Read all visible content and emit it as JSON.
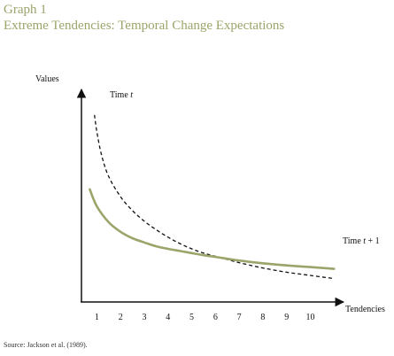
{
  "header": {
    "graph_label": "Graph 1",
    "title": "Extreme Tendencies: Temporal Change Expectations"
  },
  "source": "Source: Jackson et al. (1989).",
  "chart_data": {
    "type": "line",
    "xlabel": "Tendencies",
    "ylabel": "Values",
    "x_ticks": [
      1,
      2,
      3,
      4,
      5,
      6,
      7,
      8,
      9,
      10
    ],
    "xlim": [
      0.35,
      11.4
    ],
    "ylim": [
      0,
      10
    ],
    "series": [
      {
        "name": "Time t",
        "style": "dashed",
        "color": "#111111",
        "x": [
          0.9,
          1.0,
          1.2,
          1.5,
          2.0,
          2.5,
          3.0,
          3.5,
          4.0,
          4.5,
          5.0,
          5.5,
          6.0,
          7.0,
          8.0,
          9.0,
          10.0,
          11.0
        ],
        "y": [
          8.8,
          8.0,
          6.9,
          5.9,
          4.95,
          4.3,
          3.8,
          3.4,
          3.05,
          2.75,
          2.5,
          2.3,
          2.15,
          1.85,
          1.6,
          1.4,
          1.25,
          1.1
        ]
      },
      {
        "name": "Time t + 1",
        "style": "solid",
        "color": "#9aa56a",
        "x": [
          0.7,
          1.0,
          1.5,
          2.0,
          2.5,
          3.0,
          3.5,
          4.0,
          4.5,
          5.0,
          5.5,
          6.0,
          7.0,
          8.0,
          9.0,
          10.0,
          11.0
        ],
        "y": [
          5.3,
          4.5,
          3.75,
          3.3,
          3.0,
          2.8,
          2.62,
          2.5,
          2.4,
          2.3,
          2.2,
          2.12,
          1.95,
          1.82,
          1.72,
          1.64,
          1.56
        ]
      }
    ]
  }
}
